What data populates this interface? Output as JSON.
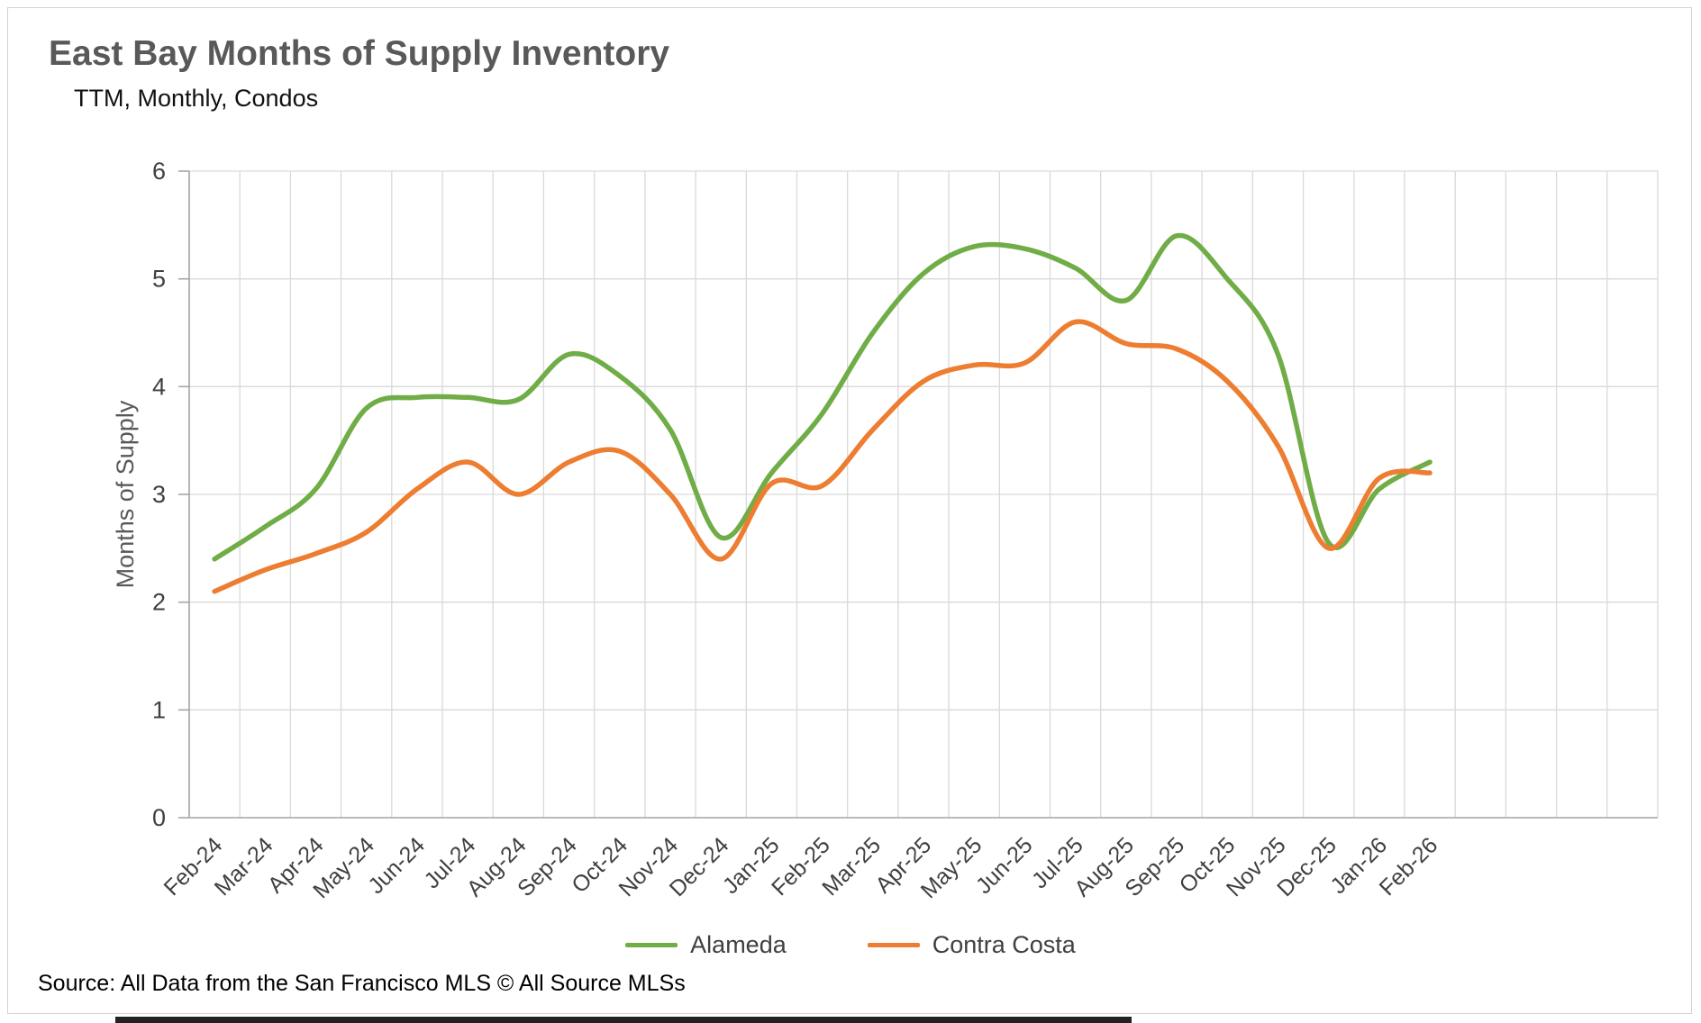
{
  "header": {
    "title": "East Bay Months of Supply Inventory",
    "subtitle": "TTM, Monthly, Condos"
  },
  "footer": {
    "source": "Source: All Data from the San Francisco MLS © All Source MLSs"
  },
  "colors": {
    "alameda": "#70AD47",
    "contra_costa": "#ED7D31",
    "gridline": "#d9d9d9",
    "axis": "#a6a6a6",
    "tick_text": "#404040"
  },
  "chart_data": {
    "type": "line",
    "title": "East Bay Months of Supply Inventory",
    "subtitle": "TTM, Monthly, Condos",
    "xlabel": "",
    "ylabel": "Months of Supply",
    "ylim": [
      0,
      6
    ],
    "yticks": [
      0,
      1,
      2,
      3,
      4,
      5,
      6
    ],
    "grid": true,
    "smooth": true,
    "legend_position": "bottom",
    "categories": [
      "Feb-24",
      "Mar-24",
      "Apr-24",
      "May-24",
      "Jun-24",
      "Jul-24",
      "Aug-24",
      "Sep-24",
      "Oct-24",
      "Nov-24",
      "Dec-24",
      "Jan-25",
      "Feb-25",
      "Mar-25",
      "Apr-25",
      "May-25",
      "Jun-25",
      "Jul-25",
      "Aug-25",
      "Sep-25",
      "Oct-25",
      "Nov-25",
      "Dec-25",
      "Jan-26",
      "Feb-26"
    ],
    "series": [
      {
        "name": "Alameda",
        "color": "#70AD47",
        "values": [
          2.4,
          2.7,
          3.05,
          3.8,
          3.9,
          3.9,
          3.88,
          4.3,
          4.1,
          3.6,
          2.6,
          3.2,
          3.75,
          4.5,
          5.05,
          5.3,
          5.28,
          5.1,
          4.8,
          5.4,
          5.0,
          4.3,
          2.55,
          3.05,
          3.3
        ]
      },
      {
        "name": "Contra Costa",
        "color": "#ED7D31",
        "values": [
          2.1,
          2.3,
          2.45,
          2.65,
          3.05,
          3.3,
          3.0,
          3.3,
          3.4,
          3.0,
          2.4,
          3.1,
          3.08,
          3.6,
          4.05,
          4.2,
          4.22,
          4.6,
          4.4,
          4.35,
          4.05,
          3.45,
          2.5,
          3.15,
          3.2
        ]
      }
    ],
    "layout": {
      "extra_slots_right": 4
    }
  }
}
